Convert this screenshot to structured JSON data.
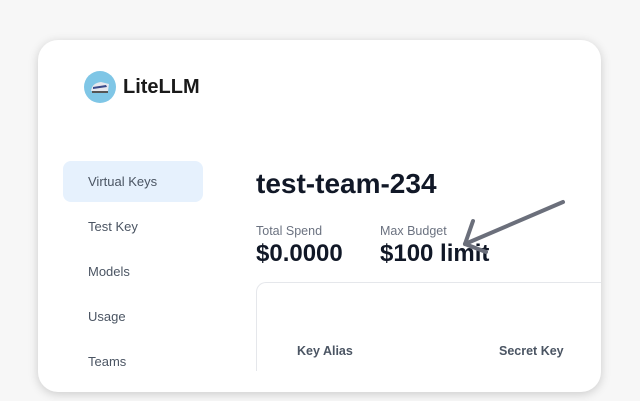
{
  "app": {
    "name": "LiteLLM",
    "logo_icon": "train-icon"
  },
  "sidebar": {
    "items": [
      {
        "label": "Virtual Keys",
        "active": true
      },
      {
        "label": "Test Key"
      },
      {
        "label": "Models"
      },
      {
        "label": "Usage"
      },
      {
        "label": "Teams"
      }
    ]
  },
  "main": {
    "title": "test-team-234",
    "stats": [
      {
        "label": "Total Spend",
        "value": "$0.0000"
      },
      {
        "label": "Max Budget",
        "value": "$100 limit"
      }
    ],
    "table": {
      "headers": [
        "Key Alias",
        "Secret Key"
      ]
    }
  },
  "annotation": {
    "icon": "arrow-icon",
    "color": "#6b6f7b"
  },
  "colors": {
    "active_nav": "#e6f1fd",
    "logo_bg": "#7fc6e6"
  }
}
